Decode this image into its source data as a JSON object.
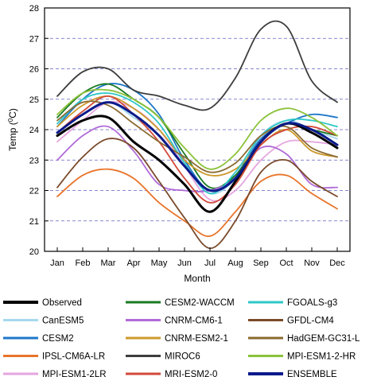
{
  "chart_data": {
    "type": "line",
    "title": "",
    "xlabel": "Month",
    "ylabel": "Temp (°C)",
    "ylabel_parts": {
      "main": "Temp (",
      "sup": "0",
      "unit": "C)"
    },
    "x": [
      "Jan",
      "Feb",
      "Mar",
      "Apr",
      "May",
      "Jun",
      "Jul",
      "Aug",
      "Sep",
      "Oct",
      "Nov",
      "Dec"
    ],
    "ylim": [
      20,
      28
    ],
    "yticks": [
      20,
      21,
      22,
      23,
      24,
      25,
      26,
      27,
      28
    ],
    "grid": "horizontal dashed",
    "legend_position": "bottom",
    "series": [
      {
        "name": "Observed",
        "color": "#000000",
        "width": 3,
        "values": [
          23.8,
          24.3,
          24.4,
          23.6,
          23.0,
          22.2,
          21.3,
          22.3,
          23.6,
          24.2,
          23.9,
          23.4
        ]
      },
      {
        "name": "CanESM5",
        "color": "#a6d8f0",
        "width": 1.8,
        "values": [
          23.9,
          24.5,
          24.9,
          24.4,
          23.8,
          22.8,
          21.9,
          22.4,
          23.8,
          24.3,
          24.0,
          23.7
        ]
      },
      {
        "name": "CESM2",
        "color": "#1f78c8",
        "width": 1.8,
        "values": [
          24.1,
          25.0,
          25.5,
          25.3,
          24.5,
          23.0,
          22.0,
          22.5,
          23.7,
          24.2,
          24.5,
          24.4
        ]
      },
      {
        "name": "IPSL-CM6A-LR",
        "color": "#e8742a",
        "width": 1.8,
        "values": [
          21.8,
          22.5,
          22.7,
          22.4,
          21.6,
          21.0,
          20.5,
          21.3,
          22.3,
          22.5,
          21.9,
          21.4
        ]
      },
      {
        "name": "MPI-ESM1-2LR",
        "color": "#e5a6df",
        "width": 1.8,
        "values": [
          23.6,
          24.3,
          24.9,
          24.7,
          24.0,
          22.8,
          21.7,
          22.0,
          23.0,
          23.6,
          23.6,
          23.5
        ]
      },
      {
        "name": "CESM2-WACCM",
        "color": "#1a7a20",
        "width": 1.8,
        "values": [
          24.4,
          25.2,
          25.5,
          25.0,
          24.4,
          23.2,
          22.1,
          22.5,
          23.6,
          24.2,
          24.0,
          23.8
        ]
      },
      {
        "name": "CNRM-CM6-1",
        "color": "#b06bd8",
        "width": 1.8,
        "values": [
          23.0,
          23.8,
          24.1,
          23.3,
          22.2,
          22.0,
          22.0,
          22.4,
          23.4,
          23.2,
          22.2,
          22.1
        ]
      },
      {
        "name": "CNRM-ESM2-1",
        "color": "#cc9a2e",
        "width": 1.8,
        "values": [
          24.1,
          24.8,
          25.1,
          24.7,
          24.0,
          23.0,
          22.5,
          22.7,
          23.5,
          24.0,
          23.3,
          23.1
        ]
      },
      {
        "name": "MIROC6",
        "color": "#3d3d3d",
        "width": 1.8,
        "values": [
          25.1,
          25.9,
          26.0,
          25.3,
          25.1,
          24.8,
          24.7,
          25.7,
          27.3,
          27.4,
          25.6,
          24.9
        ]
      },
      {
        "name": "MRI-ESM2-0",
        "color": "#d24a3a",
        "width": 1.8,
        "values": [
          23.9,
          24.6,
          25.1,
          24.5,
          23.6,
          22.4,
          21.6,
          22.2,
          23.5,
          24.0,
          24.1,
          23.8
        ]
      },
      {
        "name": "FGOALS-g3",
        "color": "#2ec7c7",
        "width": 1.8,
        "values": [
          24.2,
          25.0,
          25.2,
          24.9,
          24.2,
          22.9,
          21.9,
          22.6,
          23.8,
          24.3,
          24.3,
          24.1
        ]
      },
      {
        "name": "GFDL-CM4",
        "color": "#7a4a2a",
        "width": 1.8,
        "values": [
          22.1,
          23.1,
          23.7,
          23.4,
          22.3,
          21.1,
          20.1,
          21.0,
          22.6,
          23.0,
          22.3,
          21.8
        ]
      },
      {
        "name": "HadGEM-GC31-L",
        "color": "#8a6a30",
        "width": 1.8,
        "values": [
          24.3,
          24.9,
          24.8,
          24.2,
          23.6,
          23.1,
          22.6,
          22.9,
          23.8,
          24.1,
          23.4,
          23.1
        ]
      },
      {
        "name": "MPI-ESM1-2-HR",
        "color": "#8bc23a",
        "width": 1.8,
        "values": [
          24.5,
          25.2,
          25.3,
          25.0,
          24.4,
          23.4,
          22.7,
          23.2,
          24.3,
          24.7,
          24.4,
          23.8
        ]
      },
      {
        "name": "ENSEMBLE",
        "color": "#0a1a8a",
        "width": 3,
        "values": [
          23.9,
          24.5,
          24.9,
          24.5,
          23.8,
          22.8,
          22.0,
          22.4,
          23.6,
          24.2,
          24.0,
          23.5
        ]
      }
    ]
  }
}
